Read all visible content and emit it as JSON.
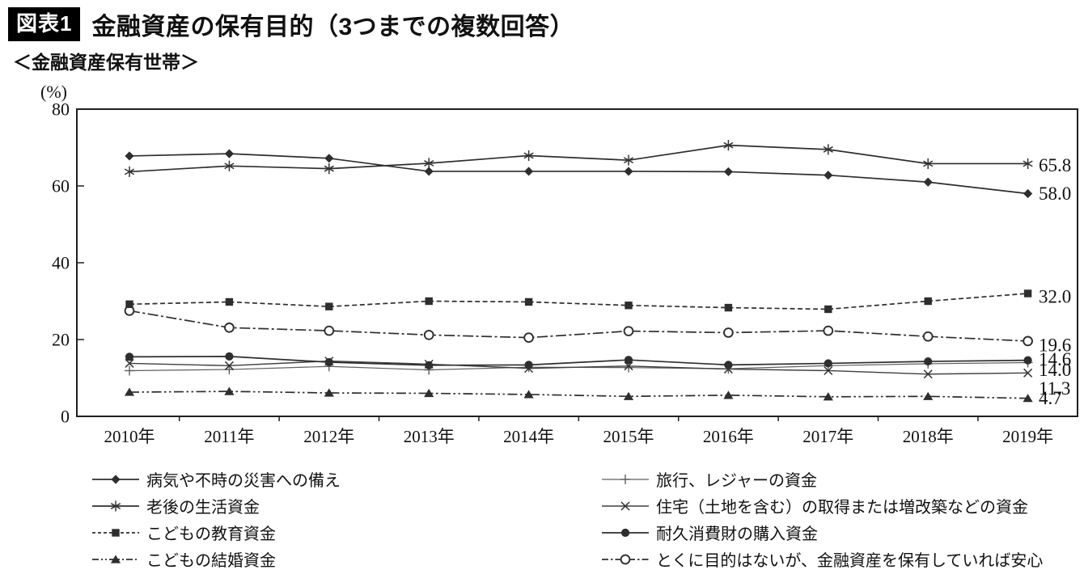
{
  "figure": {
    "badge": "図表1",
    "title": "金融資産の保有目的（3つまでの複数回答）",
    "subtitle": "＜金融資産保有世帯＞"
  },
  "colors": {
    "line_dark": "#2e2e2e",
    "line_gray": "#5f5f5f",
    "axis": "#1f1f1f",
    "badge_bg": "#000000",
    "badge_text": "#ffffff",
    "background": "#ffffff"
  },
  "chart_data": {
    "type": "line",
    "title": "金融資産の保有目的（3つまでの複数回答）",
    "subtitle": "＜金融資産保有世帯＞",
    "unit_label": "(%)",
    "ylim": [
      0,
      80
    ],
    "yticks": [
      "0",
      "20",
      "40",
      "60",
      "80"
    ],
    "grid": false,
    "legend_position": "bottom-two-columns",
    "categories": [
      "2010年",
      "2011年",
      "2012年",
      "2013年",
      "2014年",
      "2015年",
      "2016年",
      "2017年",
      "2018年",
      "2019年"
    ],
    "series": [
      {
        "name": "病気や不時の災害への備え",
        "marker": "diamond-filled",
        "line": "solid",
        "values": [
          67.8,
          68.4,
          67.2,
          63.8,
          63.8,
          63.8,
          63.7,
          62.8,
          61.0,
          58.0
        ],
        "end_label": "58.0"
      },
      {
        "name": "老後の生活資金",
        "marker": "asterisk",
        "line": "solid",
        "values": [
          63.7,
          65.2,
          64.5,
          65.9,
          67.9,
          66.7,
          70.6,
          69.5,
          65.8,
          65.8
        ],
        "end_label": "65.8"
      },
      {
        "name": "こどもの教育資金",
        "marker": "square-filled",
        "line": "dashed",
        "values": [
          29.2,
          29.8,
          28.6,
          30.0,
          29.8,
          28.9,
          28.3,
          27.9,
          30.0,
          32.0
        ],
        "end_label": "32.0"
      },
      {
        "name": "こどもの結婚資金",
        "marker": "triangle-filled",
        "line": "dash-dot-dot",
        "values": [
          6.3,
          6.5,
          6.1,
          6.0,
          5.7,
          5.2,
          5.5,
          5.1,
          5.2,
          4.7
        ],
        "end_label": "4.7"
      },
      {
        "name": "旅行、レジャーの資金",
        "marker": "plus",
        "line": "solid-thin",
        "values": [
          11.9,
          12.2,
          13.0,
          12.1,
          12.8,
          12.7,
          12.4,
          13.2,
          13.7,
          14.0
        ],
        "end_label": "14.0"
      },
      {
        "name": "住宅（土地を含む）の取得または増改築などの資金",
        "marker": "x",
        "line": "solid-thin",
        "values": [
          13.8,
          13.2,
          14.4,
          13.6,
          12.5,
          13.1,
          12.3,
          11.9,
          11.0,
          11.3
        ],
        "end_label": "11.3"
      },
      {
        "name": "耐久消費財の購入資金",
        "marker": "circle-filled",
        "line": "solid",
        "values": [
          15.5,
          15.6,
          14.1,
          13.3,
          13.4,
          14.7,
          13.4,
          13.8,
          14.3,
          14.6
        ],
        "end_label": "14.6"
      },
      {
        "name": "とくに目的はないが、金融資産を保有していれば安心",
        "marker": "circle-open",
        "line": "dash-dot",
        "values": [
          27.5,
          23.1,
          22.3,
          21.2,
          20.5,
          22.2,
          21.8,
          22.3,
          20.8,
          19.6
        ],
        "end_label": "19.6"
      }
    ],
    "legend_columns": [
      [
        0,
        1,
        2,
        3
      ],
      [
        4,
        5,
        6,
        7
      ]
    ]
  }
}
